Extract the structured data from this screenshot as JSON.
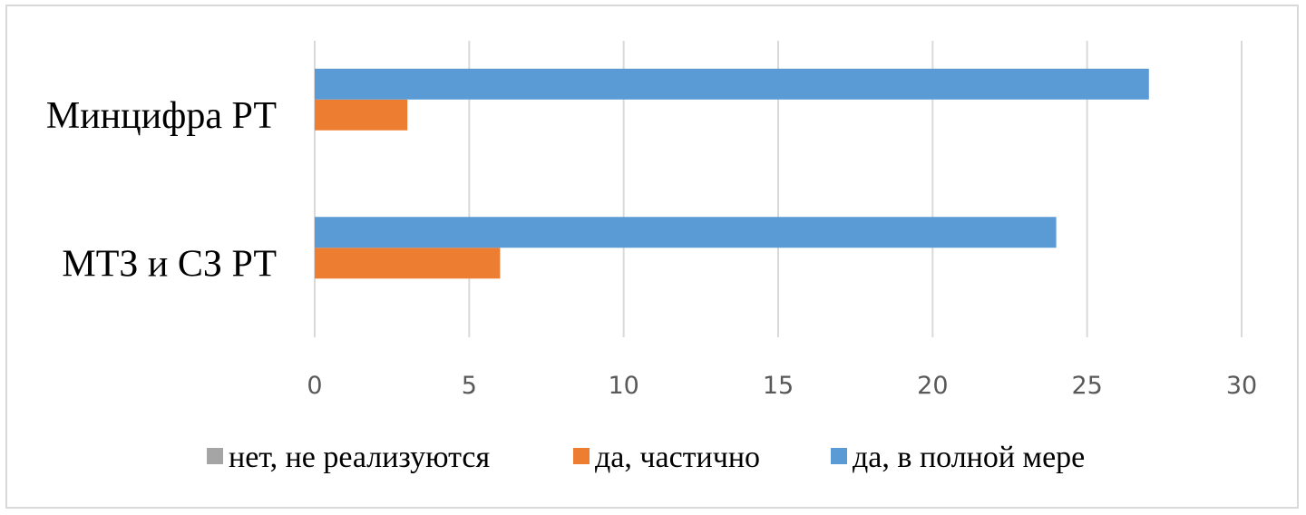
{
  "chart_data": {
    "type": "bar",
    "orientation": "horizontal",
    "categories": [
      "Минцифра РТ",
      "МТЗ и СЗ РТ"
    ],
    "series": [
      {
        "name": "нет, не реализуются",
        "values": [
          0,
          0
        ],
        "color": "#a5a5a5"
      },
      {
        "name": "да, частично",
        "values": [
          3,
          6
        ],
        "color": "#ed7d31"
      },
      {
        "name": "да, в полной мере",
        "values": [
          27,
          24
        ],
        "color": "#5b9bd5"
      }
    ],
    "xlim": [
      0,
      30
    ],
    "ticks": [
      "0",
      "5",
      "10",
      "15",
      "20",
      "25",
      "30"
    ],
    "grid": true,
    "legend_position": "bottom"
  }
}
